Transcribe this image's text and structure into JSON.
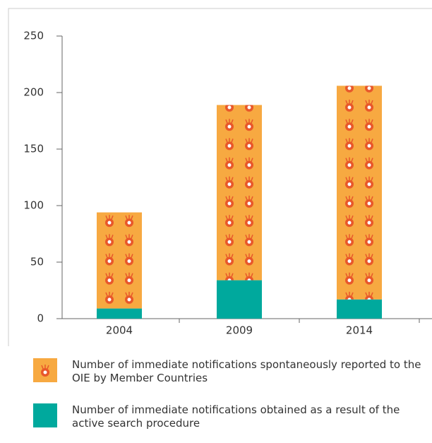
{
  "chart_data": {
    "type": "stacked_bar",
    "categories": [
      "2004",
      "2009",
      "2014"
    ],
    "series": [
      {
        "name": "Number of immediate notifications spontaneously reported to the OIE by Member Countries",
        "color": "#f7a941",
        "values": [
          85,
          155,
          189
        ]
      },
      {
        "name": "Number of immediate notifications obtained as a result of the active search procedure",
        "color": "#00a99d",
        "values": [
          9,
          34,
          17
        ]
      }
    ],
    "ylim": [
      0,
      250
    ],
    "yticks": [
      0,
      50,
      100,
      150,
      200,
      250
    ]
  }
}
